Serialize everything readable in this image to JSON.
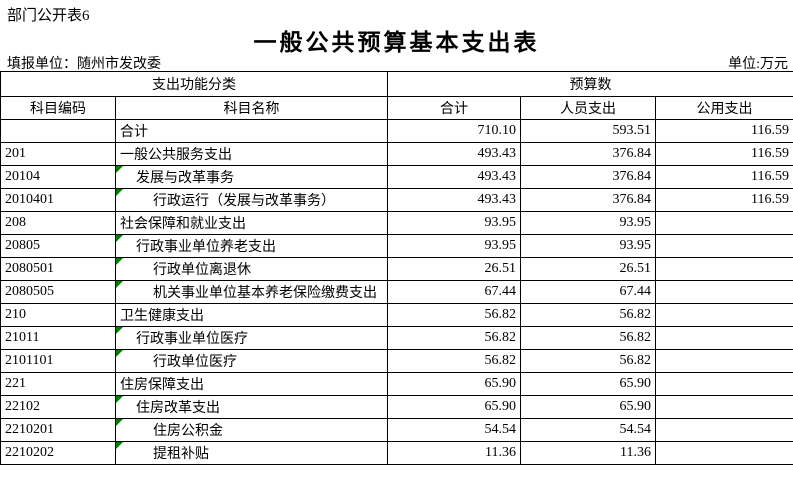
{
  "meta": {
    "table_label": "部门公开表6",
    "title": "一般公共预算基本支出表",
    "reporting_unit_label": "填报单位：随州市发改委",
    "unit_label": "单位:万元"
  },
  "colors": {
    "background": "#ffffff",
    "border": "#000000",
    "text": "#000000",
    "corner_marker_green": "#008000"
  },
  "table": {
    "group_headers": [
      {
        "label": "支出功能分类"
      },
      {
        "label": "预算数"
      }
    ],
    "columns": [
      "科目编码",
      "科目名称",
      "合计",
      "人员支出",
      "公用支出"
    ],
    "rows": [
      {
        "code": "",
        "name": "合计",
        "indent": 0,
        "marker": false,
        "total": "710.10",
        "personnel": "593.51",
        "public": "116.59"
      },
      {
        "code": "201",
        "name": "一般公共服务支出",
        "indent": 0,
        "marker": false,
        "total": "493.43",
        "personnel": "376.84",
        "public": "116.59"
      },
      {
        "code": "20104",
        "name": "发展与改革事务",
        "indent": 1,
        "marker": true,
        "total": "493.43",
        "personnel": "376.84",
        "public": "116.59"
      },
      {
        "code": "2010401",
        "name": "行政运行（发展与改革事务）",
        "indent": 2,
        "marker": true,
        "total": "493.43",
        "personnel": "376.84",
        "public": "116.59"
      },
      {
        "code": "208",
        "name": "社会保障和就业支出",
        "indent": 0,
        "marker": false,
        "total": "93.95",
        "personnel": "93.95",
        "public": ""
      },
      {
        "code": "20805",
        "name": "行政事业单位养老支出",
        "indent": 1,
        "marker": true,
        "total": "93.95",
        "personnel": "93.95",
        "public": ""
      },
      {
        "code": "2080501",
        "name": "行政单位离退休",
        "indent": 2,
        "marker": true,
        "total": "26.51",
        "personnel": "26.51",
        "public": ""
      },
      {
        "code": "2080505",
        "name": "机关事业单位基本养老保险缴费支出",
        "indent": 2,
        "marker": true,
        "total": "67.44",
        "personnel": "67.44",
        "public": ""
      },
      {
        "code": "210",
        "name": "卫生健康支出",
        "indent": 0,
        "marker": false,
        "total": "56.82",
        "personnel": "56.82",
        "public": ""
      },
      {
        "code": "21011",
        "name": "行政事业单位医疗",
        "indent": 1,
        "marker": true,
        "total": "56.82",
        "personnel": "56.82",
        "public": ""
      },
      {
        "code": "2101101",
        "name": "行政单位医疗",
        "indent": 2,
        "marker": true,
        "total": "56.82",
        "personnel": "56.82",
        "public": ""
      },
      {
        "code": "221",
        "name": "住房保障支出",
        "indent": 0,
        "marker": false,
        "total": "65.90",
        "personnel": "65.90",
        "public": ""
      },
      {
        "code": "22102",
        "name": "住房改革支出",
        "indent": 1,
        "marker": true,
        "total": "65.90",
        "personnel": "65.90",
        "public": ""
      },
      {
        "code": "2210201",
        "name": "住房公积金",
        "indent": 2,
        "marker": true,
        "total": "54.54",
        "personnel": "54.54",
        "public": ""
      },
      {
        "code": "2210202",
        "name": "提租补贴",
        "indent": 2,
        "marker": true,
        "total": "11.36",
        "personnel": "11.36",
        "public": ""
      }
    ]
  }
}
